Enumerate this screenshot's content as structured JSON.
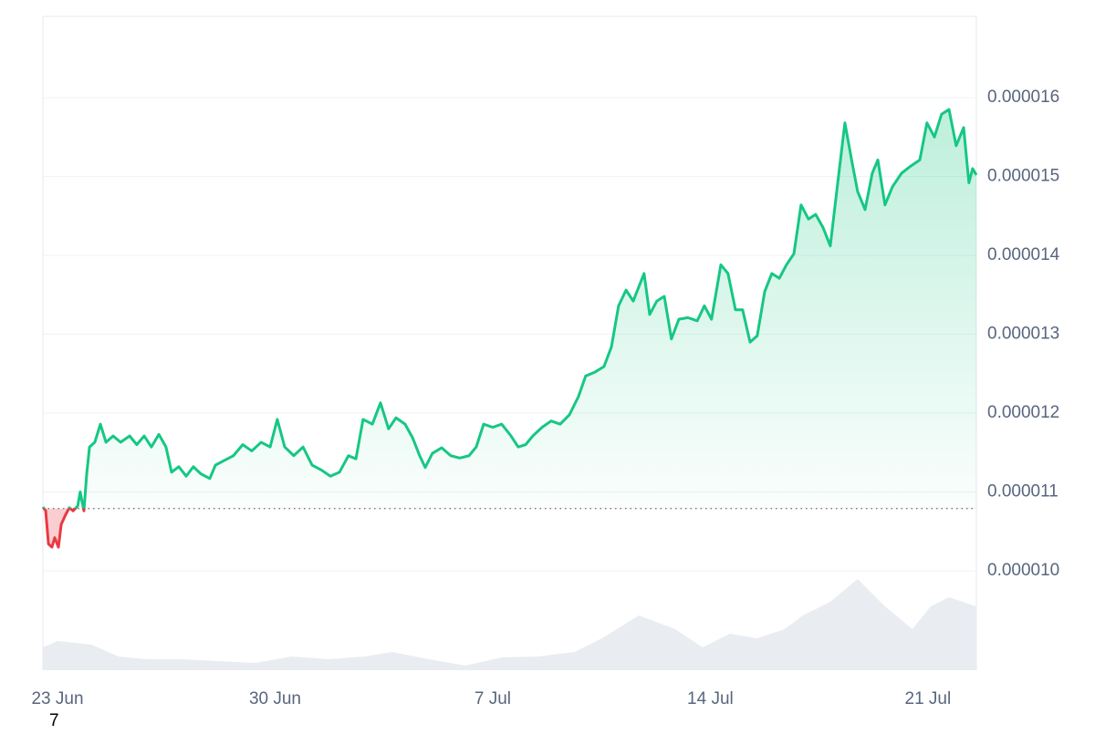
{
  "chart_data": {
    "type": "line",
    "color": "#16c784",
    "down_color": "#ea3943",
    "baseline": 1.079e-05,
    "annotation": "7",
    "xlim": [
      -0.47,
      29.56
    ],
    "xticks": [
      {
        "value": 0,
        "label": "23 Jun"
      },
      {
        "value": 7,
        "label": "30 Jun"
      },
      {
        "value": 14,
        "label": "7 Jul"
      },
      {
        "value": 21,
        "label": "14 Jul"
      },
      {
        "value": 28,
        "label": "21 Jul"
      }
    ],
    "ylim": [
      8.74e-06,
      1.703e-05
    ],
    "yticks": [
      {
        "value": 1e-05,
        "label": "0.000010"
      },
      {
        "value": 1.1e-05,
        "label": "0.000011"
      },
      {
        "value": 1.2e-05,
        "label": "0.000012"
      },
      {
        "value": 1.3e-05,
        "label": "0.000013"
      },
      {
        "value": 1.4e-05,
        "label": "0.000014"
      },
      {
        "value": 1.5e-05,
        "label": "0.000015"
      },
      {
        "value": 1.6e-05,
        "label": "0.000016"
      }
    ],
    "grid": true,
    "x": [
      -0.47,
      -0.38,
      -0.29,
      -0.18,
      -0.09,
      0.03,
      0.12,
      0.26,
      0.38,
      0.5,
      0.65,
      0.73,
      0.85,
      0.94,
      1.03,
      1.2,
      1.38,
      1.56,
      1.79,
      2.03,
      2.32,
      2.55,
      2.79,
      3.02,
      3.26,
      3.49,
      3.67,
      3.9,
      4.14,
      4.37,
      4.61,
      4.9,
      5.08,
      5.37,
      5.66,
      5.96,
      6.25,
      6.55,
      6.84,
      7.07,
      7.31,
      7.6,
      7.9,
      8.19,
      8.48,
      8.78,
      9.07,
      9.36,
      9.6,
      9.83,
      10.13,
      10.39,
      10.65,
      10.89,
      11.18,
      11.42,
      11.65,
      11.83,
      12.06,
      12.36,
      12.65,
      12.94,
      13.24,
      13.47,
      13.71,
      14,
      14.29,
      14.59,
      14.82,
      15.06,
      15.29,
      15.59,
      15.88,
      16.17,
      16.47,
      16.76,
      16.99,
      17.29,
      17.58,
      17.82,
      18.05,
      18.29,
      18.52,
      18.7,
      18.87,
      19.05,
      19.28,
      19.52,
      19.75,
      19.99,
      20.28,
      20.58,
      20.81,
      21.04,
      21.34,
      21.57,
      21.81,
      22.04,
      22.28,
      22.51,
      22.75,
      22.98,
      23.22,
      23.45,
      23.69,
      23.92,
      24.16,
      24.39,
      24.63,
      24.86,
      25.1,
      25.33,
      25.57,
      25.74,
      25.98,
      26.21,
      26.39,
      26.62,
      26.86,
      27.15,
      27.44,
      27.74,
      27.97,
      28.21,
      28.44,
      28.68,
      28.91,
      29.15,
      29.32,
      29.44,
      29.56
    ],
    "values": [
      1.081e-05,
      1.076e-05,
      1.034e-05,
      1.03e-05,
      1.042e-05,
      1.03e-05,
      1.059e-05,
      1.071e-05,
      1.08e-05,
      1.076e-05,
      1.082e-05,
      1.1e-05,
      1.076e-05,
      1.123e-05,
      1.157e-05,
      1.163e-05,
      1.186e-05,
      1.163e-05,
      1.171e-05,
      1.163e-05,
      1.171e-05,
      1.16e-05,
      1.171e-05,
      1.157e-05,
      1.173e-05,
      1.157e-05,
      1.125e-05,
      1.132e-05,
      1.12e-05,
      1.132e-05,
      1.123e-05,
      1.117e-05,
      1.134e-05,
      1.14e-05,
      1.146e-05,
      1.16e-05,
      1.152e-05,
      1.163e-05,
      1.157e-05,
      1.192e-05,
      1.157e-05,
      1.146e-05,
      1.157e-05,
      1.134e-05,
      1.128e-05,
      1.12e-05,
      1.125e-05,
      1.146e-05,
      1.142e-05,
      1.192e-05,
      1.186e-05,
      1.213e-05,
      1.18e-05,
      1.194e-05,
      1.186e-05,
      1.169e-05,
      1.146e-05,
      1.131e-05,
      1.149e-05,
      1.156e-05,
      1.146e-05,
      1.143e-05,
      1.146e-05,
      1.157e-05,
      1.186e-05,
      1.182e-05,
      1.186e-05,
      1.171e-05,
      1.157e-05,
      1.16e-05,
      1.171e-05,
      1.182e-05,
      1.19e-05,
      1.186e-05,
      1.198e-05,
      1.221e-05,
      1.247e-05,
      1.252e-05,
      1.259e-05,
      1.284e-05,
      1.336e-05,
      1.356e-05,
      1.342e-05,
      1.36e-05,
      1.377e-05,
      1.325e-05,
      1.342e-05,
      1.348e-05,
      1.294e-05,
      1.319e-05,
      1.321e-05,
      1.317e-05,
      1.336e-05,
      1.319e-05,
      1.388e-05,
      1.377e-05,
      1.331e-05,
      1.331e-05,
      1.29e-05,
      1.298e-05,
      1.354e-05,
      1.377e-05,
      1.371e-05,
      1.388e-05,
      1.402e-05,
      1.464e-05,
      1.446e-05,
      1.452e-05,
      1.435e-05,
      1.412e-05,
      1.492e-05,
      1.568e-05,
      1.516e-05,
      1.481e-05,
      1.458e-05,
      1.504e-05,
      1.521e-05,
      1.464e-05,
      1.487e-05,
      1.504e-05,
      1.513e-05,
      1.521e-05,
      1.568e-05,
      1.55e-05,
      1.579e-05,
      1.585e-05,
      1.539e-05,
      1.562e-05,
      1.492e-05,
      1.51e-05,
      1.502e-05
    ],
    "volume": {
      "ylim": [
        0,
        100
      ],
      "x": [
        -0.47,
        0,
        1.09,
        1.97,
        2.85,
        4.02,
        5.2,
        6.37,
        7.54,
        8.72,
        9.89,
        10.77,
        11.95,
        13.12,
        14.29,
        15.47,
        16.64,
        17.52,
        18.7,
        19.87,
        20.75,
        21.63,
        22.51,
        23.39,
        23.98,
        24.86,
        25.74,
        26.62,
        27.5,
        28.09,
        28.68,
        29.56
      ],
      "values": [
        25,
        32,
        28,
        15,
        12,
        12,
        10,
        8,
        15,
        12,
        15,
        20,
        12,
        5,
        14,
        15,
        20,
        35,
        60,
        45,
        25,
        40,
        35,
        45,
        60,
        75,
        100,
        70,
        45,
        70,
        80,
        70
      ],
      "color": "#e9ecf1"
    }
  }
}
